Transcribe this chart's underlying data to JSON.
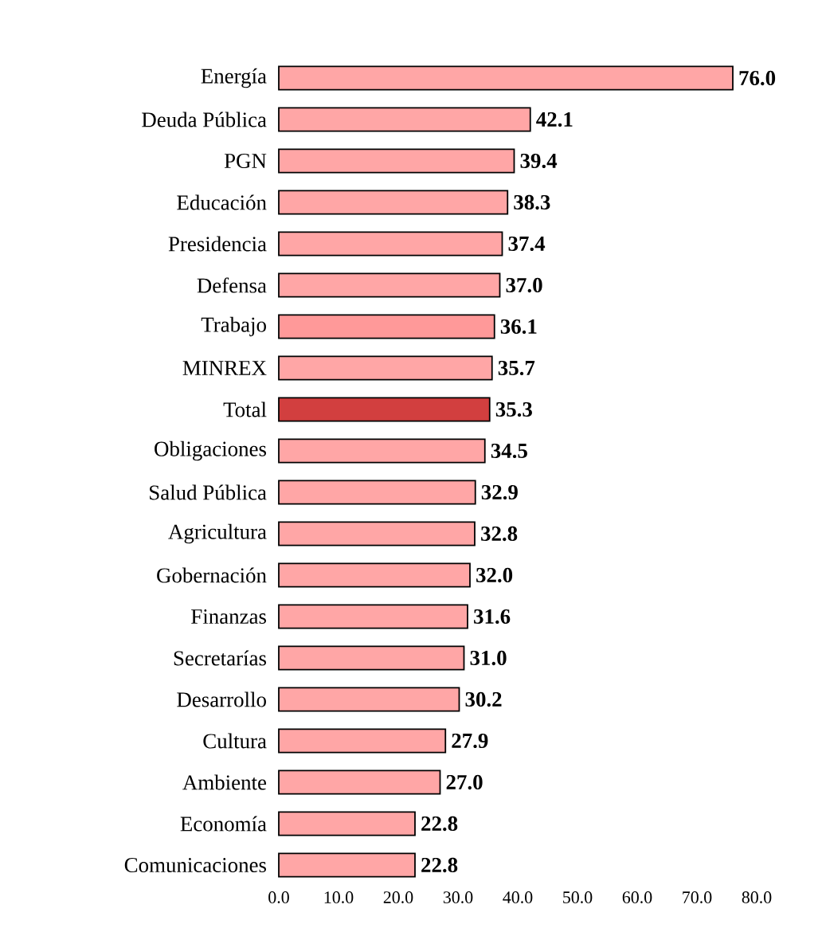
{
  "chart_data": {
    "type": "bar",
    "orientation": "horizontal",
    "grid": false,
    "value_labels": [
      "76.0",
      "42.1",
      "39.4",
      "38.3",
      "37.4",
      "37.0",
      "36.1",
      "35.7",
      "35.3",
      "34.5",
      "32.9",
      "32.8",
      "32.0",
      "31.6",
      "31.0",
      "30.2",
      "27.9",
      "27.0",
      "22.8",
      "22.8"
    ],
    "categories": [
      "Energía",
      "Deuda Pública",
      "PGN",
      "Educación",
      "Presidencia",
      "Defensa",
      "Trabajo",
      "MINREX",
      "Total",
      "Obligaciones",
      "Salud Pública",
      "Agricultura",
      "Gobernación",
      "Finanzas",
      "Secretarías",
      "Desarrollo",
      "Cultura",
      "Ambiente",
      "Economía",
      "Comunicaciones"
    ],
    "values": [
      76.0,
      42.1,
      39.4,
      38.3,
      37.4,
      37.0,
      36.1,
      35.7,
      35.3,
      34.5,
      32.9,
      32.8,
      32.0,
      31.6,
      31.0,
      30.2,
      27.9,
      27.0,
      22.8,
      22.8
    ],
    "colors": [
      "#ffa6a6",
      "#ffa6a6",
      "#ffa6a6",
      "#ffa6a6",
      "#ffa6a6",
      "#ffa6a6",
      "#ff9999",
      "#ffa6a6",
      "#d23f3f",
      "#ffa6a6",
      "#ffa6a6",
      "#ffa6a6",
      "#ffa6a6",
      "#ffa6a6",
      "#ffa6a6",
      "#ffa6a6",
      "#ffa6a6",
      "#ffa6a6",
      "#ffa6a6",
      "#ffa6a6"
    ],
    "xlim": [
      0,
      80
    ],
    "xticks": [
      {
        "value": 0,
        "label": "0.0"
      },
      {
        "value": 10,
        "label": "10.0"
      },
      {
        "value": 20,
        "label": "20.0"
      },
      {
        "value": 30,
        "label": "30.0"
      },
      {
        "value": 40,
        "label": "40.0"
      },
      {
        "value": 50,
        "label": "50.0"
      },
      {
        "value": 60,
        "label": "60.0"
      },
      {
        "value": 70,
        "label": "70.0"
      },
      {
        "value": 80,
        "label": "80.0"
      }
    ]
  }
}
